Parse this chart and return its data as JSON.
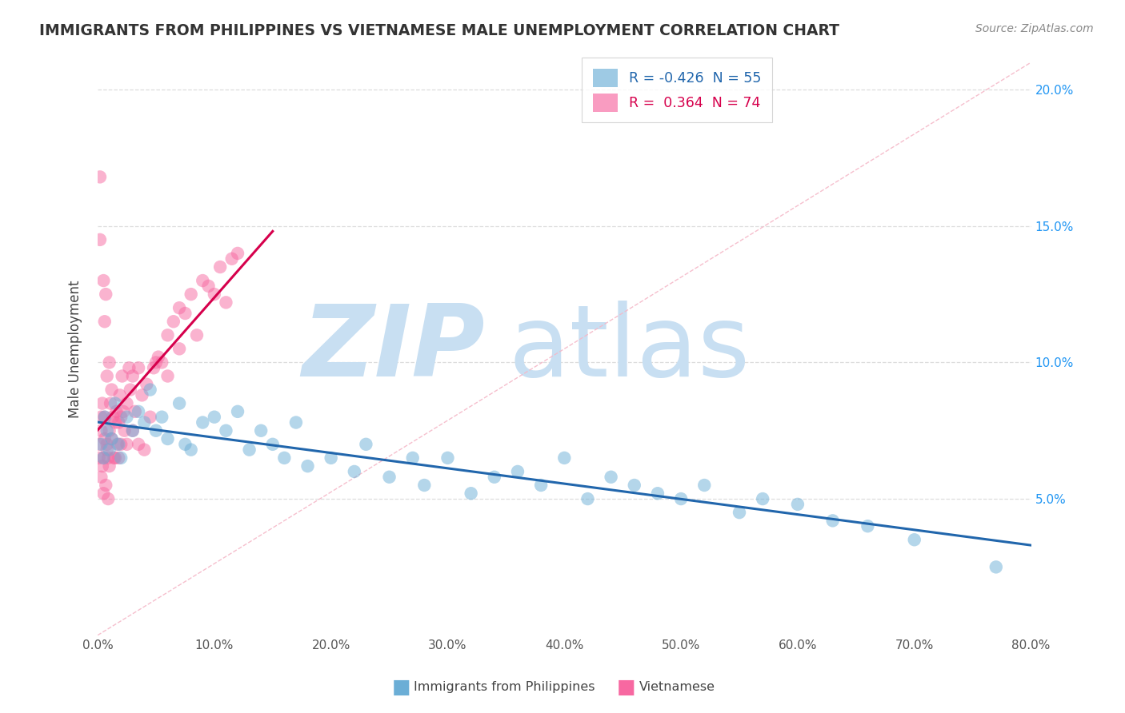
{
  "title": "IMMIGRANTS FROM PHILIPPINES VS VIETNAMESE MALE UNEMPLOYMENT CORRELATION CHART",
  "source": "Source: ZipAtlas.com",
  "ylabel": "Male Unemployment",
  "xlim": [
    0,
    80
  ],
  "ylim": [
    0,
    21
  ],
  "ytick_vals": [
    5,
    10,
    15,
    20
  ],
  "xtick_vals": [
    0,
    10,
    20,
    30,
    40,
    50,
    60,
    70,
    80
  ],
  "philippines_color": "#6baed6",
  "vietnamese_color": "#f768a1",
  "trend_phil_color": "#2166ac",
  "trend_viet_color": "#d6004c",
  "diagonal_color": "#f5b8c8",
  "grid_color": "#dddddd",
  "background_color": "#ffffff",
  "watermark_color": "#c8dff2",
  "legend_label_bottom_phil": "Immigrants from Philippines",
  "legend_label_bottom_viet": "Vietnamese",
  "legend_entries": [
    {
      "label": "R = -0.426  N = 55",
      "color": "#6baed6",
      "text_color": "#2166ac"
    },
    {
      "label": "R =  0.364  N = 74",
      "color": "#f768a1",
      "text_color": "#d6004c"
    }
  ],
  "philippines_x": [
    0.3,
    0.5,
    0.6,
    0.8,
    1.0,
    1.2,
    1.5,
    1.8,
    2.0,
    2.5,
    3.0,
    3.5,
    4.0,
    4.5,
    5.0,
    5.5,
    6.0,
    7.0,
    7.5,
    8.0,
    9.0,
    10.0,
    11.0,
    12.0,
    13.0,
    14.0,
    15.0,
    16.0,
    17.0,
    18.0,
    20.0,
    22.0,
    23.0,
    25.0,
    27.0,
    28.0,
    30.0,
    32.0,
    34.0,
    36.0,
    38.0,
    40.0,
    42.0,
    44.0,
    46.0,
    48.0,
    50.0,
    52.0,
    55.0,
    57.0,
    60.0,
    63.0,
    66.0,
    70.0,
    77.0
  ],
  "philippines_y": [
    7.0,
    6.5,
    8.0,
    7.5,
    6.8,
    7.2,
    8.5,
    7.0,
    6.5,
    8.0,
    7.5,
    8.2,
    7.8,
    9.0,
    7.5,
    8.0,
    7.2,
    8.5,
    7.0,
    6.8,
    7.8,
    8.0,
    7.5,
    8.2,
    6.8,
    7.5,
    7.0,
    6.5,
    7.8,
    6.2,
    6.5,
    6.0,
    7.0,
    5.8,
    6.5,
    5.5,
    6.5,
    5.2,
    5.8,
    6.0,
    5.5,
    6.5,
    5.0,
    5.8,
    5.5,
    5.2,
    5.0,
    5.5,
    4.5,
    5.0,
    4.8,
    4.2,
    4.0,
    3.5,
    2.5
  ],
  "vietnamese_x": [
    0.1,
    0.15,
    0.2,
    0.2,
    0.3,
    0.3,
    0.3,
    0.4,
    0.4,
    0.5,
    0.5,
    0.5,
    0.6,
    0.6,
    0.6,
    0.7,
    0.7,
    0.8,
    0.8,
    0.8,
    0.9,
    0.9,
    1.0,
    1.0,
    1.0,
    1.1,
    1.2,
    1.2,
    1.3,
    1.4,
    1.5,
    1.5,
    1.6,
    1.7,
    1.8,
    1.8,
    1.9,
    2.0,
    2.0,
    2.1,
    2.2,
    2.3,
    2.5,
    2.5,
    2.7,
    2.8,
    3.0,
    3.0,
    3.2,
    3.5,
    3.5,
    3.8,
    4.0,
    4.2,
    4.5,
    4.8,
    5.0,
    5.2,
    5.5,
    6.0,
    6.0,
    6.5,
    7.0,
    7.0,
    7.5,
    8.0,
    8.5,
    9.0,
    9.5,
    10.0,
    10.5,
    11.0,
    11.5,
    12.0
  ],
  "vietnamese_y": [
    6.5,
    7.0,
    16.8,
    14.5,
    7.5,
    8.0,
    5.8,
    8.5,
    6.2,
    13.0,
    6.5,
    5.2,
    11.5,
    7.2,
    8.0,
    12.5,
    5.5,
    7.0,
    9.5,
    6.8,
    6.5,
    5.0,
    10.0,
    7.5,
    6.2,
    8.5,
    9.0,
    7.2,
    8.0,
    6.5,
    7.8,
    6.5,
    8.2,
    7.0,
    7.8,
    6.5,
    8.8,
    7.0,
    8.0,
    9.5,
    8.2,
    7.5,
    8.5,
    7.0,
    9.8,
    9.0,
    7.5,
    9.5,
    8.2,
    7.0,
    9.8,
    8.8,
    6.8,
    9.2,
    8.0,
    9.8,
    10.0,
    10.2,
    10.0,
    11.0,
    9.5,
    11.5,
    10.5,
    12.0,
    11.8,
    12.5,
    11.0,
    13.0,
    12.8,
    12.5,
    13.5,
    12.2,
    13.8,
    14.0
  ]
}
